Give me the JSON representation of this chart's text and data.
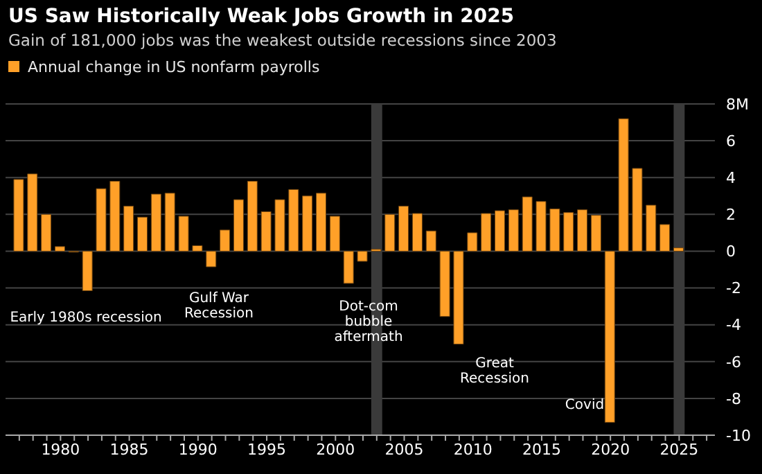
{
  "chart_data": {
    "type": "bar",
    "title": "US Saw Historically Weak Jobs Growth in 2025",
    "subtitle": "Gain of 181,000 jobs was the weakest outside recessions since 2003",
    "x": [
      1977,
      1978,
      1979,
      1980,
      1981,
      1982,
      1983,
      1984,
      1985,
      1986,
      1987,
      1988,
      1989,
      1990,
      1991,
      1992,
      1993,
      1994,
      1995,
      1996,
      1997,
      1998,
      1999,
      2000,
      2001,
      2002,
      2003,
      2004,
      2005,
      2006,
      2007,
      2008,
      2009,
      2010,
      2011,
      2012,
      2013,
      2014,
      2015,
      2016,
      2017,
      2018,
      2019,
      2020,
      2021,
      2022,
      2023,
      2024,
      2025
    ],
    "series": [
      {
        "name": "Annual change in US nonfarm payrolls",
        "color": "#ffa028",
        "values": [
          3.9,
          4.2,
          2.0,
          0.25,
          -0.05,
          -2.15,
          3.4,
          3.8,
          2.45,
          1.85,
          3.1,
          3.15,
          1.9,
          0.3,
          -0.85,
          1.15,
          2.8,
          3.8,
          2.15,
          2.8,
          3.35,
          3.0,
          3.15,
          1.9,
          -1.75,
          -0.55,
          0.1,
          2.0,
          2.45,
          2.05,
          1.1,
          -3.55,
          -5.05,
          1.0,
          2.05,
          2.2,
          2.25,
          2.95,
          2.7,
          2.3,
          2.1,
          2.25,
          1.95,
          -9.3,
          7.2,
          4.5,
          2.5,
          1.45,
          0.18
        ]
      }
    ],
    "xlim": [
      1976,
      2027.6
    ],
    "xticks": [
      {
        "value": 1977,
        "label": null
      },
      {
        "value": 1978,
        "label": null
      },
      {
        "value": 1979,
        "label": null
      },
      1980,
      {
        "value": 1981,
        "label": null
      },
      {
        "value": 1982,
        "label": null
      },
      {
        "value": 1983,
        "label": null
      },
      {
        "value": 1984,
        "label": null
      },
      1985,
      {
        "value": 1986,
        "label": null
      },
      {
        "value": 1987,
        "label": null
      },
      {
        "value": 1988,
        "label": null
      },
      {
        "value": 1989,
        "label": null
      },
      1990,
      {
        "value": 1991,
        "label": null
      },
      {
        "value": 1992,
        "label": null
      },
      {
        "value": 1993,
        "label": null
      },
      {
        "value": 1994,
        "label": null
      },
      1995,
      {
        "value": 1996,
        "label": null
      },
      {
        "value": 1997,
        "label": null
      },
      {
        "value": 1998,
        "label": null
      },
      {
        "value": 1999,
        "label": null
      },
      2000,
      {
        "value": 2001,
        "label": null
      },
      {
        "value": 2002,
        "label": null
      },
      {
        "value": 2003,
        "label": null
      },
      {
        "value": 2004,
        "label": null
      },
      2005,
      {
        "value": 2006,
        "label": null
      },
      {
        "value": 2007,
        "label": null
      },
      {
        "value": 2008,
        "label": null
      },
      {
        "value": 2009,
        "label": null
      },
      2010,
      {
        "value": 2011,
        "label": null
      },
      {
        "value": 2012,
        "label": null
      },
      {
        "value": 2013,
        "label": null
      },
      {
        "value": 2014,
        "label": null
      },
      2015,
      {
        "value": 2016,
        "label": null
      },
      {
        "value": 2017,
        "label": null
      },
      {
        "value": 2018,
        "label": null
      },
      {
        "value": 2019,
        "label": null
      },
      2020,
      {
        "value": 2021,
        "label": null
      },
      {
        "value": 2022,
        "label": null
      },
      {
        "value": 2023,
        "label": null
      },
      {
        "value": 2024,
        "label": null
      },
      2025,
      {
        "value": 2026,
        "label": null
      },
      {
        "value": 2027,
        "label": null
      }
    ],
    "ylim": [
      -10,
      8
    ],
    "yticks": [
      -10,
      -8,
      -6,
      -4,
      -2,
      0,
      2,
      4,
      6,
      {
        "value": 8,
        "label": "8M"
      }
    ],
    "grid": "y",
    "legend": "top left",
    "bands": [
      {
        "axis": "x",
        "from": 2002.6,
        "to": 2003.4,
        "color": "#3a3a3a"
      },
      {
        "axis": "x",
        "from": 2024.6,
        "to": 2025.4,
        "color": "#3a3a3a"
      }
    ],
    "annotations": [
      "Early 1980s recession",
      "Gulf War\nRecession",
      "Dot-com\nbubble\naftermath",
      "Great\nRecession",
      "Covid"
    ]
  }
}
